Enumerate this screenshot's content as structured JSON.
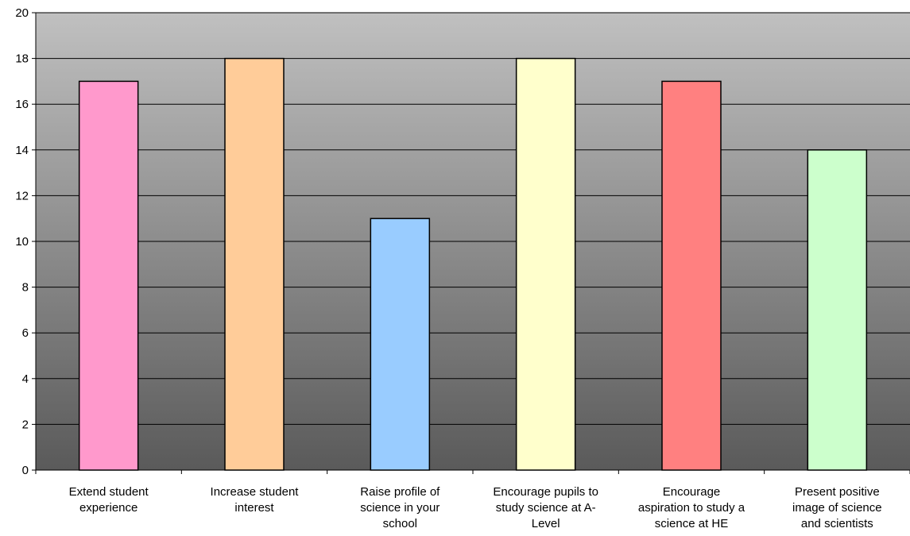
{
  "chart_data": {
    "type": "bar",
    "title": "",
    "xlabel": "",
    "ylabel": "",
    "ylim": [
      0,
      20
    ],
    "yticks": [
      0,
      2,
      4,
      6,
      8,
      10,
      12,
      14,
      16,
      18,
      20
    ],
    "grid": true,
    "legend": "none",
    "categories": [
      "Extend student experience",
      "Increase student interest",
      "Raise profile of science in your school",
      "Encourage pupils to study science at A-Level",
      "Encourage aspiration to study a science at HE",
      "Present positive image of science and scientists"
    ],
    "category_label_lines": [
      [
        "Extend student",
        "experience"
      ],
      [
        "Increase student",
        "interest"
      ],
      [
        "Raise profile of",
        "science in your",
        "school"
      ],
      [
        "Encourage pupils to",
        "study science at A-",
        "Level"
      ],
      [
        "Encourage",
        "aspiration to study a",
        "science at HE"
      ],
      [
        "Present positive",
        "image of science",
        "and scientists"
      ]
    ],
    "values": [
      17,
      18,
      11,
      18,
      17,
      14
    ],
    "bar_colors": [
      "#FF99CC",
      "#FFCC99",
      "#99CCFF",
      "#FFFFCC",
      "#FF8080",
      "#CCFFCC"
    ],
    "plot_background": {
      "top": "#C0C0C0",
      "bottom": "#5A5A5A"
    }
  }
}
